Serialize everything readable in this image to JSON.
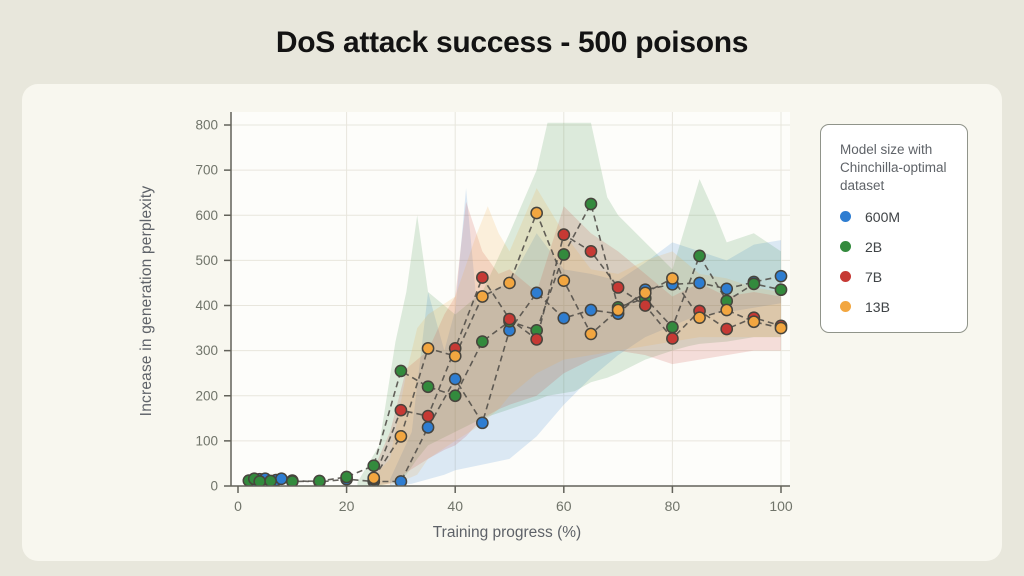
{
  "page": {
    "title": "DoS attack success - 500 poisons",
    "background": "#e8e7dc",
    "card_background": "#f8f7ef",
    "plot_background": "#fdfdfa"
  },
  "chart_data": {
    "type": "line",
    "title": "DoS attack success - 500 poisons",
    "xlabel": "Training progress (%)",
    "ylabel": "Increase in generation perplexity",
    "xlim": [
      0,
      101
    ],
    "ylim": [
      0,
      800
    ],
    "x_ticks": [
      0,
      20,
      40,
      60,
      80,
      100
    ],
    "y_ticks": [
      0,
      100,
      200,
      300,
      400,
      500,
      600,
      700,
      800
    ],
    "grid": true,
    "legend_position": "right",
    "legend_title": "Model size with Chinchilla-optimal dataset",
    "marker_outline_color": "#47443d",
    "dash_line_color": "#53504a",
    "series": [
      {
        "name": "600M",
        "color": "#2e7dd1",
        "x": [
          3,
          4,
          5,
          6,
          7,
          8,
          10,
          15,
          20,
          25,
          30,
          35,
          40,
          45,
          50,
          55,
          60,
          65,
          70,
          75,
          80,
          85,
          90,
          95,
          100
        ],
        "y": [
          10,
          15,
          16,
          10,
          13,
          16,
          12,
          9,
          15,
          10,
          10,
          130,
          237,
          140,
          345,
          428,
          372,
          390,
          382,
          435,
          447,
          450,
          437,
          452,
          465
        ],
        "band": {
          "x": [
            28,
            32,
            35,
            38,
            40,
            42,
            44,
            46,
            50,
            55,
            60,
            65,
            70,
            75,
            80,
            85,
            90,
            95,
            100
          ],
          "upper": [
            15,
            120,
            430,
            300,
            390,
            660,
            400,
            430,
            450,
            560,
            480,
            470,
            455,
            495,
            540,
            520,
            500,
            535,
            545
          ],
          "lower": [
            0,
            5,
            15,
            25,
            35,
            40,
            45,
            50,
            60,
            110,
            180,
            240,
            290,
            330,
            355,
            380,
            385,
            395,
            405
          ]
        }
      },
      {
        "name": "2B",
        "color": "#338a3d",
        "x": [
          2,
          3,
          4,
          6,
          10,
          15,
          20,
          25,
          30,
          35,
          40,
          45,
          50,
          55,
          60,
          65,
          70,
          75,
          80,
          85,
          90,
          95,
          100
        ],
        "y": [
          12,
          16,
          10,
          11,
          10,
          11,
          20,
          45,
          255,
          220,
          200,
          320,
          365,
          345,
          513,
          625,
          396,
          416,
          352,
          510,
          410,
          448,
          435
        ],
        "band": {
          "x": [
            22,
            26,
            29,
            31,
            33,
            35,
            40,
            45,
            50,
            55,
            57,
            62,
            65,
            68,
            70,
            75,
            80,
            83,
            85,
            88,
            90,
            95,
            100
          ],
          "upper": [
            8,
            90,
            320,
            430,
            600,
            430,
            380,
            430,
            560,
            700,
            805,
            805,
            805,
            640,
            600,
            540,
            480,
            600,
            680,
            600,
            540,
            560,
            520
          ],
          "lower": [
            0,
            0,
            10,
            25,
            60,
            90,
            120,
            150,
            170,
            190,
            200,
            210,
            230,
            240,
            250,
            280,
            300,
            310,
            315,
            318,
            320,
            330,
            330
          ]
        }
      },
      {
        "name": "7B",
        "color": "#c63934",
        "x": [
          25,
          30,
          35,
          40,
          45,
          50,
          55,
          60,
          65,
          70,
          75,
          80,
          85,
          90,
          95,
          100
        ],
        "y": [
          15,
          168,
          155,
          305,
          462,
          370,
          325,
          557,
          520,
          440,
          400,
          327,
          388,
          348,
          373,
          355
        ],
        "band": {
          "x": [
            24,
            28,
            31,
            35,
            38,
            40,
            42,
            45,
            48,
            50,
            55,
            60,
            65,
            70,
            75,
            80,
            85,
            90,
            95,
            100
          ],
          "upper": [
            10,
            120,
            260,
            300,
            380,
            420,
            630,
            520,
            470,
            480,
            430,
            620,
            560,
            520,
            470,
            420,
            450,
            420,
            430,
            420
          ],
          "lower": [
            0,
            5,
            30,
            60,
            80,
            90,
            110,
            150,
            170,
            180,
            200,
            250,
            280,
            300,
            290,
            270,
            280,
            290,
            300,
            300
          ]
        }
      },
      {
        "name": "13B",
        "color": "#f2a640",
        "x": [
          25,
          30,
          35,
          40,
          45,
          50,
          55,
          60,
          65,
          70,
          75,
          80,
          85,
          90,
          95,
          100
        ],
        "y": [
          18,
          110,
          305,
          288,
          420,
          450,
          605,
          455,
          337,
          390,
          428,
          460,
          373,
          390,
          364,
          350
        ],
        "band": {
          "x": [
            24,
            28,
            31,
            33,
            35,
            40,
            44,
            46,
            48,
            50,
            55,
            60,
            65,
            70,
            75,
            80,
            85,
            90,
            95,
            100
          ],
          "upper": [
            10,
            60,
            250,
            350,
            380,
            420,
            560,
            620,
            560,
            520,
            660,
            560,
            480,
            470,
            500,
            520,
            470,
            460,
            440,
            430
          ],
          "lower": [
            0,
            2,
            15,
            25,
            60,
            100,
            130,
            150,
            170,
            200,
            250,
            280,
            290,
            300,
            310,
            320,
            330,
            330,
            330,
            330
          ]
        }
      }
    ]
  },
  "axis_style": {
    "tick_label_color": "#70746a",
    "grid_color": "#e8e6dd",
    "spine_color": "#62625a"
  }
}
